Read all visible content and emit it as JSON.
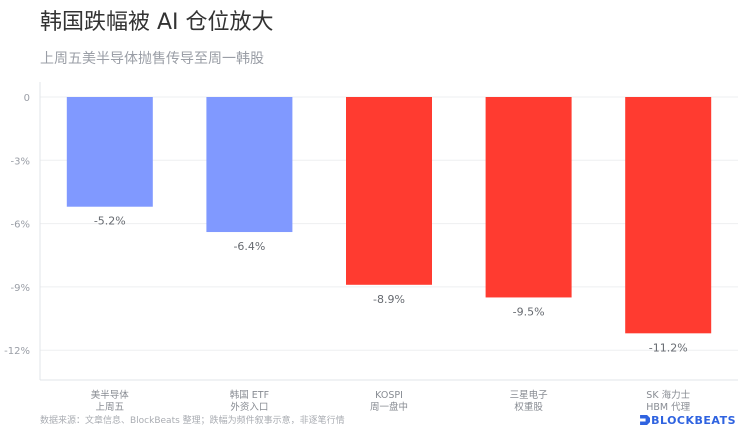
{
  "chart_data": {
    "type": "bar",
    "title": "韩国跌幅被 AI 仓位放大",
    "subtitle": "上周五美半导体抛售传导至周一韩股",
    "categories": [
      [
        "美半导体",
        "上周五"
      ],
      [
        "韩国 ETF",
        "外资入口"
      ],
      [
        "KOSPI",
        "周一盘中"
      ],
      [
        "三星电子",
        "权重股"
      ],
      [
        "SK 海力士",
        "HBM 代理"
      ]
    ],
    "values": [
      -5.2,
      -6.4,
      -8.9,
      -9.5,
      -11.2
    ],
    "data_labels": [
      "-5.2%",
      "-6.4%",
      "-8.9%",
      "-9.5%",
      "-11.2%"
    ],
    "bar_colors": [
      "#8099ff",
      "#8099ff",
      "#ff3b30",
      "#ff3b30",
      "#ff3b30"
    ],
    "yticks": [
      0,
      -3,
      -6,
      -9,
      -12
    ],
    "ytick_labels": [
      "0",
      "-3%",
      "-6%",
      "-9%",
      "-12%"
    ],
    "ylim": [
      -13.5,
      0
    ],
    "grid": true,
    "legend": "none"
  },
  "footer": {
    "source": "数据来源：文章信息、BlockBeats 整理；跌幅为频件叙事示意，非逐笔行情",
    "brand": "BLOCKBEATS"
  }
}
